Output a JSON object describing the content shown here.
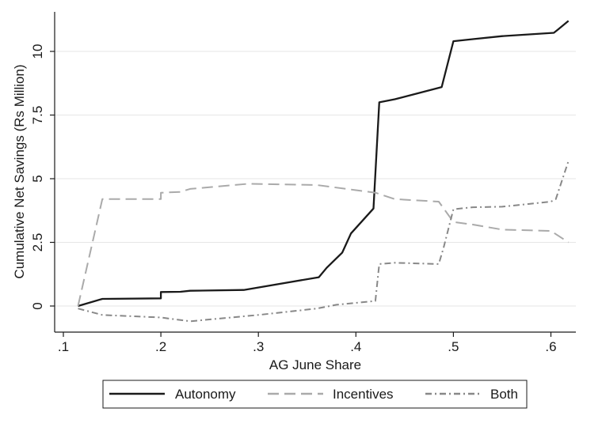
{
  "chart_data": {
    "type": "line",
    "xlabel": "AG June Share",
    "ylabel": "Cumulative Net Savings (Rs Million)",
    "xlim": [
      0.1,
      0.625
    ],
    "ylim": [
      -0.9,
      11.5
    ],
    "grid": true,
    "legend_position": "bottom",
    "x_ticks": [
      {
        "value": 0.1,
        "label": ".1"
      },
      {
        "value": 0.2,
        "label": ".2"
      },
      {
        "value": 0.3,
        "label": ".3"
      },
      {
        "value": 0.4,
        "label": ".4"
      },
      {
        "value": 0.5,
        "label": ".5"
      },
      {
        "value": 0.6,
        "label": ".6"
      }
    ],
    "y_ticks": [
      {
        "value": 0,
        "label": "0"
      },
      {
        "value": 2.5,
        "label": "2.5"
      },
      {
        "value": 5,
        "label": "5"
      },
      {
        "value": 7.5,
        "label": "7.5"
      },
      {
        "value": 10,
        "label": "10"
      }
    ],
    "series": [
      {
        "name": "Autonomy",
        "color": "#1a1a1a",
        "dash": "solid",
        "points": [
          [
            0.115,
            0
          ],
          [
            0.14,
            0.28
          ],
          [
            0.2,
            0.3
          ],
          [
            0.2,
            0.55
          ],
          [
            0.22,
            0.56
          ],
          [
            0.23,
            0.6
          ],
          [
            0.285,
            0.63
          ],
          [
            0.362,
            1.13
          ],
          [
            0.37,
            1.5
          ],
          [
            0.386,
            2.1
          ],
          [
            0.395,
            2.85
          ],
          [
            0.418,
            3.83
          ],
          [
            0.424,
            8.0
          ],
          [
            0.44,
            8.12
          ],
          [
            0.488,
            8.6
          ],
          [
            0.5,
            10.4
          ],
          [
            0.52,
            10.48
          ],
          [
            0.55,
            10.6
          ],
          [
            0.603,
            10.73
          ],
          [
            0.607,
            10.85
          ],
          [
            0.618,
            11.2
          ]
        ]
      },
      {
        "name": "Incentives",
        "color": "#aaaaaa",
        "dash": "dashed",
        "points": [
          [
            0.115,
            0
          ],
          [
            0.14,
            4.2
          ],
          [
            0.2,
            4.2
          ],
          [
            0.2,
            4.45
          ],
          [
            0.22,
            4.48
          ],
          [
            0.23,
            4.6
          ],
          [
            0.29,
            4.8
          ],
          [
            0.32,
            4.78
          ],
          [
            0.36,
            4.75
          ],
          [
            0.4,
            4.55
          ],
          [
            0.42,
            4.45
          ],
          [
            0.44,
            4.2
          ],
          [
            0.485,
            4.1
          ],
          [
            0.5,
            3.3
          ],
          [
            0.52,
            3.2
          ],
          [
            0.55,
            3.0
          ],
          [
            0.6,
            2.95
          ],
          [
            0.618,
            2.5
          ]
        ]
      },
      {
        "name": "Both",
        "color": "#888888",
        "dash": "dashdot",
        "points": [
          [
            0.115,
            -0.1
          ],
          [
            0.14,
            -0.35
          ],
          [
            0.2,
            -0.45
          ],
          [
            0.23,
            -0.6
          ],
          [
            0.3,
            -0.35
          ],
          [
            0.36,
            -0.1
          ],
          [
            0.38,
            0.05
          ],
          [
            0.42,
            0.2
          ],
          [
            0.424,
            1.65
          ],
          [
            0.44,
            1.7
          ],
          [
            0.485,
            1.65
          ],
          [
            0.49,
            2.3
          ],
          [
            0.5,
            3.8
          ],
          [
            0.52,
            3.88
          ],
          [
            0.55,
            3.9
          ],
          [
            0.6,
            4.1
          ],
          [
            0.605,
            4.2
          ],
          [
            0.618,
            5.7
          ]
        ]
      }
    ]
  }
}
